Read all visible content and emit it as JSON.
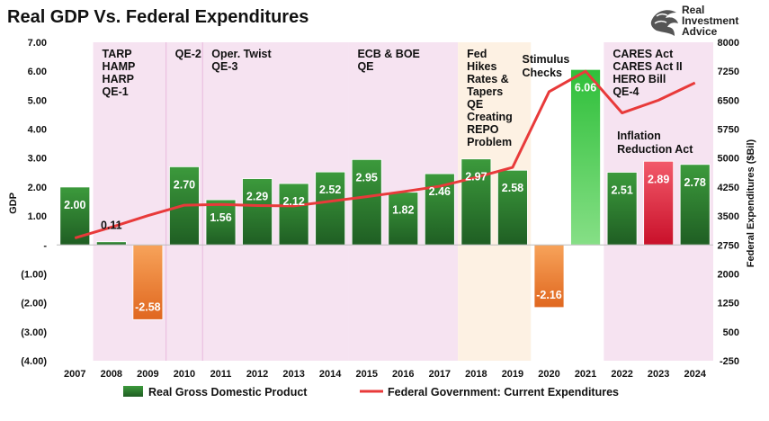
{
  "title": "Real GDP Vs. Federal Expenditures",
  "logo": {
    "lines": [
      "Real",
      "Investment",
      "Advice"
    ],
    "icon": "eagle-head-icon"
  },
  "colors": {
    "bar_top": "#3c9a3c",
    "bar_bottom": "#1f5e23",
    "bar_neg_top": "#f7a35a",
    "bar_neg_bottom": "#e0671f",
    "bar_red_top": "#f25a6a",
    "bar_red_bottom": "#c9102a",
    "bar_bright_top": "#2fbf3a",
    "bar_bright_bottom": "#86df86",
    "line": "#e83a3a",
    "shade_pink": "#f6e3f1",
    "shade_peach": "#fdf1e3"
  },
  "chart_data": {
    "type": "bar",
    "title": "Real GDP Vs. Federal Expenditures",
    "categories": [
      "2007",
      "2008",
      "2009",
      "2010",
      "2011",
      "2012",
      "2013",
      "2014",
      "2015",
      "2016",
      "2017",
      "2018",
      "2019",
      "2020",
      "2021",
      "2022",
      "2023",
      "2024"
    ],
    "series": [
      {
        "name": "Real Gross Domestic Product",
        "type": "bar",
        "axis": "left",
        "values": [
          2.0,
          0.11,
          -2.58,
          2.7,
          1.56,
          2.29,
          2.12,
          2.52,
          2.95,
          1.82,
          2.46,
          2.97,
          2.58,
          -2.16,
          6.06,
          2.51,
          2.89,
          2.78
        ],
        "labels": [
          "2.00",
          "0.11",
          "-2.58",
          "2.70",
          "1.56",
          "2.29",
          "2.12",
          "2.52",
          "2.95",
          "1.82",
          "2.46",
          "2.97",
          "2.58",
          "-2.16",
          "6.06",
          "2.51",
          "2.89",
          "2.78"
        ]
      },
      {
        "name": "Federal Government: Current Expenditures",
        "type": "line",
        "axis": "right",
        "values": [
          2930,
          3210,
          3510,
          3780,
          3800,
          3770,
          3760,
          3880,
          4000,
          4130,
          4270,
          4500,
          4760,
          6720,
          7250,
          6170,
          6500,
          6950
        ]
      }
    ],
    "ylabel": "GDP",
    "ylabel_right": "Federal Expenditures ($Bil)",
    "ylim": [
      -4,
      7
    ],
    "ylim_right": [
      -250,
      8000
    ],
    "yticks_left": [
      "7.00",
      "6.00",
      "5.00",
      "4.00",
      "3.00",
      "2.00",
      "1.00",
      "-",
      "(1.00)",
      "(2.00)",
      "(3.00)",
      "(4.00)"
    ],
    "yticks_right": [
      "8000",
      "7250",
      "6500",
      "5750",
      "5000",
      "4250",
      "3500",
      "2750",
      "2000",
      "1250",
      "500",
      "-250"
    ],
    "grid": false,
    "legend": "bottom",
    "shaded_periods": [
      {
        "from": "2008",
        "to": "2009",
        "color": "pink",
        "label": [
          "TARP",
          "HAMP",
          "HARP",
          "QE-1"
        ]
      },
      {
        "from": "2010",
        "to": "2010",
        "color": "pink",
        "label": [
          "QE-2"
        ]
      },
      {
        "from": "2011",
        "to": "2014",
        "color": "pink",
        "label": [
          "Oper. Twist",
          "QE-3"
        ]
      },
      {
        "from": "2015",
        "to": "2017",
        "color": "pink",
        "label": [
          "ECB & BOE",
          "QE"
        ]
      },
      {
        "from": "2018",
        "to": "2019",
        "color": "peach",
        "label": [
          "Fed",
          "Hikes",
          "Rates &",
          "Tapers",
          "QE",
          "Creating",
          "REPO",
          "Problem"
        ]
      },
      {
        "from": "2022",
        "to": "2024",
        "color": "pink",
        "label": [
          "CARES Act",
          "CARES Act II",
          "HERO Bill",
          "QE-4"
        ]
      }
    ],
    "annotations": [
      {
        "text": [
          "Stimulus",
          "Checks"
        ],
        "near": "2020"
      },
      {
        "text": [
          "Inflation",
          "Reduction Act"
        ],
        "near": "2023"
      }
    ]
  }
}
